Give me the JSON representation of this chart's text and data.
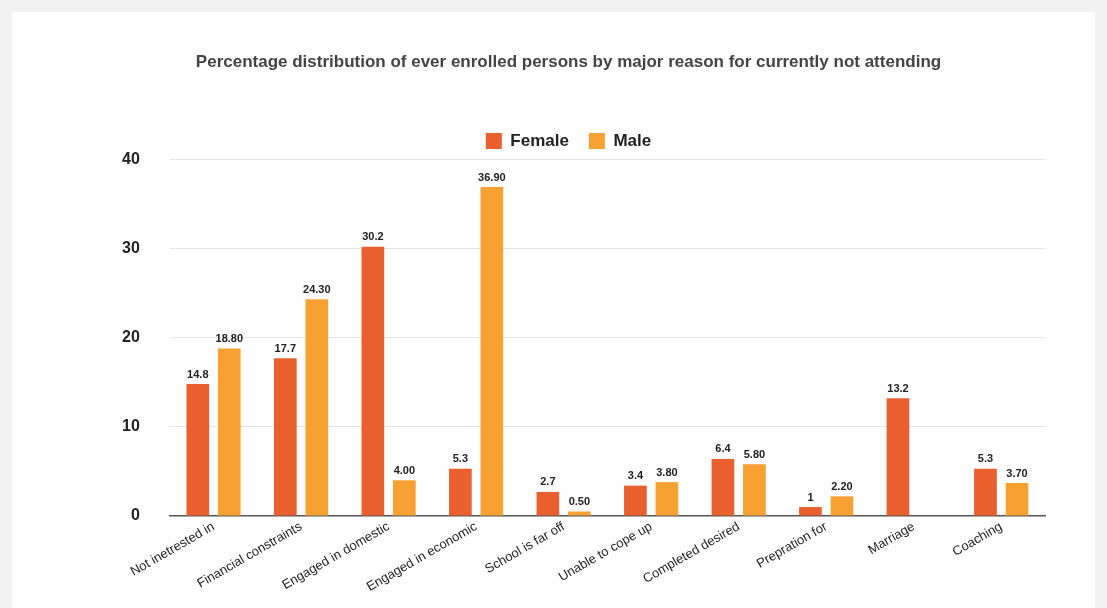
{
  "chart_data": {
    "type": "bar",
    "title": "Percentage distribution of ever enrolled persons by major reason for currently not attending",
    "categories": [
      "Not inetrested in",
      "Financial constraints",
      "Engaged in domestic",
      "Engaged in economic",
      "School is far off",
      "Unable to cope up",
      "Completed desired",
      "Prepration for",
      "Marriage",
      "Coaching"
    ],
    "series": [
      {
        "name": "Female",
        "color": "#e95f2e",
        "values": [
          14.8,
          17.7,
          30.2,
          5.3,
          2.7,
          3.4,
          6.4,
          1,
          13.2,
          5.3
        ],
        "value_labels": [
          "14.8",
          "17.7",
          "30.2",
          "5.3",
          "2.7",
          "3.4",
          "6.4",
          "1",
          "13.2",
          "5.3"
        ]
      },
      {
        "name": "Male",
        "color": "#f8a133",
        "values": [
          18.8,
          24.3,
          4,
          36.9,
          0.5,
          3.8,
          5.8,
          2.2,
          null,
          3.7
        ],
        "value_labels": [
          "18.80",
          "24.30",
          "4.00",
          "36.90",
          "0.50",
          "3.80",
          "5.80",
          "2.20",
          null,
          "3.70"
        ]
      }
    ],
    "ylim": [
      0,
      40
    ],
    "yticks": [
      0,
      10,
      20,
      30,
      40
    ],
    "grid": "y",
    "legend": "top"
  }
}
